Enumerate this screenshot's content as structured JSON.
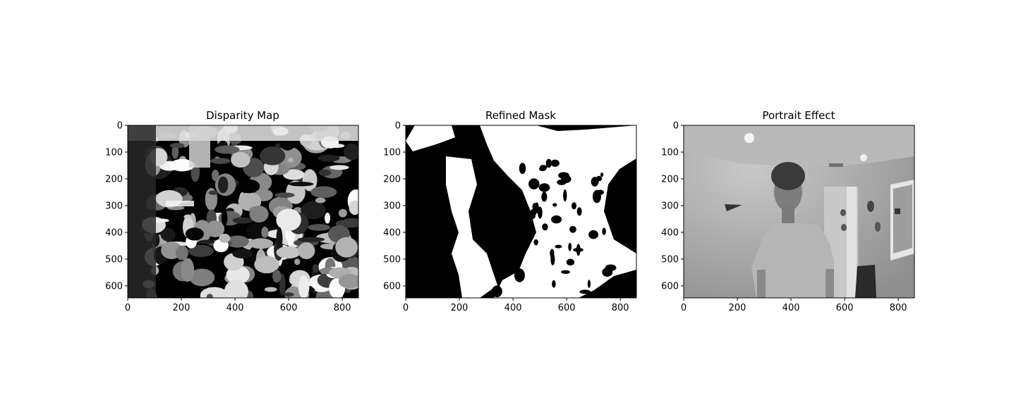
{
  "chart_data": [
    {
      "type": "image",
      "title": "Disparity Map",
      "xlim": [
        0,
        860
      ],
      "ylim": [
        645,
        0
      ],
      "xticks": [
        0,
        200,
        400,
        600,
        800
      ],
      "yticks": [
        0,
        100,
        200,
        300,
        400,
        500,
        600
      ],
      "colormap": "gray",
      "content": "disparity-noise"
    },
    {
      "type": "image",
      "title": "Refined Mask",
      "xlim": [
        0,
        860
      ],
      "ylim": [
        645,
        0
      ],
      "xticks": [
        0,
        200,
        400,
        600,
        800
      ],
      "yticks": [
        0,
        100,
        200,
        300,
        400,
        500,
        600
      ],
      "colormap": "gray",
      "content": "binary-mask"
    },
    {
      "type": "image",
      "title": "Portrait Effect",
      "xlim": [
        0,
        860
      ],
      "ylim": [
        645,
        0
      ],
      "xticks": [
        0,
        200,
        400,
        600,
        800
      ],
      "yticks": [
        0,
        100,
        200,
        300,
        400,
        500,
        600
      ],
      "colormap": "gray",
      "content": "grayscale-photo"
    }
  ]
}
